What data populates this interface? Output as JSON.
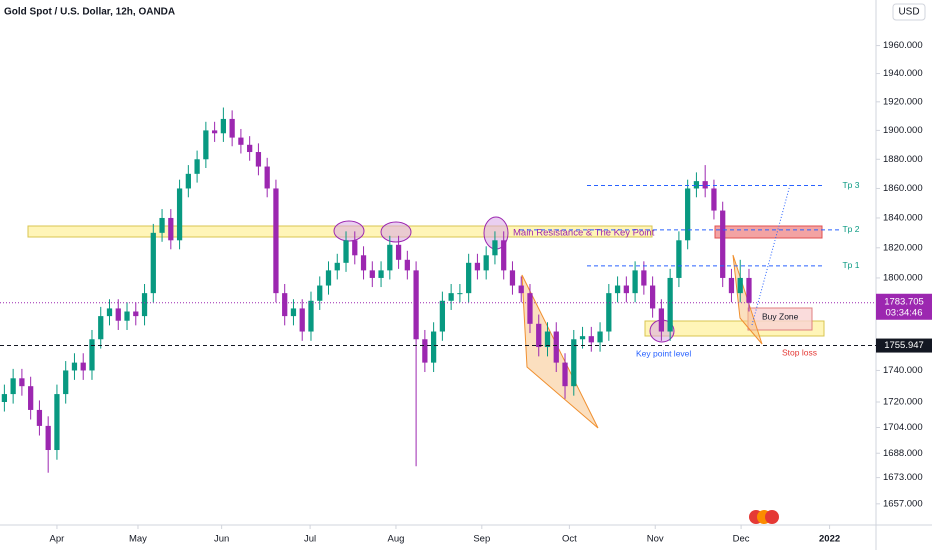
{
  "chart_data": {
    "type": "candlestick",
    "title": "Gold Spot / U.S. Dollar, 12h, OANDA",
    "currency": "USD",
    "log_scale": true,
    "up_color": "#089981",
    "down_color": "#9c27b0",
    "xlim": [
      0,
      100
    ],
    "xticks": [
      {
        "value": 6.5,
        "label": "Apr"
      },
      {
        "value": 15.75,
        "label": "May"
      },
      {
        "value": 25.3,
        "label": "Jun"
      },
      {
        "value": 35.4,
        "label": "Jul"
      },
      {
        "value": 45.2,
        "label": "Aug"
      },
      {
        "value": 55,
        "label": "Sep"
      },
      {
        "value": 65,
        "label": "Oct"
      },
      {
        "value": 74.8,
        "label": "Nov"
      },
      {
        "value": 84.6,
        "label": "Dec"
      },
      {
        "value": 94.7,
        "label": "2022"
      }
    ],
    "ylim": [
      1646,
      1993
    ],
    "yticks": [
      {
        "value": 1960,
        "label": "1960.000"
      },
      {
        "value": 1940,
        "label": "1940.000"
      },
      {
        "value": 1920,
        "label": "1920.000"
      },
      {
        "value": 1900,
        "label": "1900.000"
      },
      {
        "value": 1880,
        "label": "1880.000"
      },
      {
        "value": 1860,
        "label": "1860.000"
      },
      {
        "value": 1840,
        "label": "1840.000"
      },
      {
        "value": 1820,
        "label": "1820.000"
      },
      {
        "value": 1800,
        "label": "1800.000"
      },
      {
        "value": 1740,
        "label": "1740.000"
      },
      {
        "value": 1720,
        "label": "1720.000"
      },
      {
        "value": 1704,
        "label": "1704.000"
      },
      {
        "value": 1688,
        "label": "1688.000"
      },
      {
        "value": 1673,
        "label": "1673.000"
      },
      {
        "value": 1657,
        "label": "1657.000"
      }
    ],
    "open": [
      1720,
      1725,
      1735,
      1730,
      1715,
      1705,
      1690,
      1725,
      1740,
      1745,
      1740,
      1760,
      1775,
      1780,
      1772,
      1778,
      1775,
      1790,
      1830,
      1840,
      1825,
      1860,
      1870,
      1880,
      1900,
      1898,
      1908,
      1895,
      1890,
      1885,
      1875,
      1860,
      1790,
      1775,
      1780,
      1765,
      1785,
      1795,
      1805,
      1810,
      1825,
      1815,
      1805,
      1800,
      1805,
      1822,
      1812,
      1805,
      1760,
      1745,
      1765,
      1785,
      1790,
      1790,
      1810,
      1805,
      1815,
      1825,
      1805,
      1795,
      1790,
      1770,
      1755,
      1765,
      1745,
      1730,
      1760,
      1762,
      1758,
      1765,
      1790,
      1795,
      1790,
      1805,
      1795,
      1780,
      1765,
      1800,
      1825,
      1860,
      1865,
      1860,
      1845,
      1800,
      1790,
      1800
    ],
    "high": [
      1731,
      1741,
      1741,
      1736,
      1721,
      1711,
      1731,
      1746,
      1751,
      1751,
      1766,
      1781,
      1786,
      1786,
      1784,
      1784,
      1796,
      1836,
      1846,
      1846,
      1866,
      1876,
      1886,
      1906,
      1906,
      1916,
      1914,
      1901,
      1896,
      1891,
      1881,
      1866,
      1796,
      1786,
      1786,
      1791,
      1801,
      1811,
      1816,
      1831,
      1831,
      1821,
      1811,
      1811,
      1828,
      1828,
      1818,
      1811,
      1766,
      1771,
      1791,
      1796,
      1796,
      1816,
      1816,
      1821,
      1831,
      1831,
      1811,
      1801,
      1796,
      1776,
      1771,
      1771,
      1751,
      1766,
      1768,
      1768,
      1771,
      1796,
      1801,
      1801,
      1811,
      1811,
      1801,
      1786,
      1806,
      1831,
      1866,
      1871,
      1876,
      1866,
      1851,
      1806,
      1812,
      1806
    ],
    "low": [
      1714,
      1719,
      1724,
      1709,
      1699,
      1676,
      1684,
      1719,
      1734,
      1734,
      1734,
      1754,
      1769,
      1766,
      1766,
      1769,
      1769,
      1784,
      1824,
      1819,
      1819,
      1854,
      1864,
      1874,
      1892,
      1892,
      1889,
      1884,
      1879,
      1869,
      1854,
      1784,
      1769,
      1769,
      1759,
      1759,
      1779,
      1789,
      1799,
      1804,
      1809,
      1799,
      1794,
      1794,
      1799,
      1806,
      1799,
      1680,
      1739,
      1739,
      1759,
      1779,
      1784,
      1784,
      1799,
      1799,
      1809,
      1799,
      1789,
      1784,
      1764,
      1749,
      1749,
      1739,
      1722,
      1724,
      1754,
      1752,
      1752,
      1759,
      1784,
      1784,
      1784,
      1789,
      1774,
      1759,
      1759,
      1794,
      1819,
      1854,
      1854,
      1839,
      1794,
      1784,
      1784,
      1778
    ],
    "close": [
      1725,
      1735,
      1730,
      1715,
      1705,
      1690,
      1725,
      1740,
      1745,
      1740,
      1760,
      1775,
      1780,
      1772,
      1778,
      1775,
      1790,
      1830,
      1840,
      1825,
      1860,
      1870,
      1880,
      1900,
      1898,
      1908,
      1895,
      1890,
      1885,
      1875,
      1860,
      1790,
      1775,
      1780,
      1765,
      1785,
      1795,
      1805,
      1810,
      1825,
      1815,
      1805,
      1800,
      1805,
      1822,
      1812,
      1805,
      1760,
      1745,
      1765,
      1785,
      1790,
      1790,
      1810,
      1805,
      1815,
      1825,
      1805,
      1795,
      1790,
      1770,
      1755,
      1765,
      1745,
      1730,
      1760,
      1762,
      1758,
      1765,
      1790,
      1795,
      1790,
      1805,
      1795,
      1780,
      1765,
      1800,
      1825,
      1860,
      1865,
      1860,
      1845,
      1800,
      1790,
      1800,
      1783.705
    ],
    "last_price": 1783.705,
    "countdown": "03:34:46",
    "key_level": 1755.947,
    "levels": [
      {
        "label": "Tp 3",
        "value": 1862
      },
      {
        "label": "Tp 2",
        "value": 1832
      },
      {
        "label": "Tp 1",
        "value": 1808
      }
    ],
    "annotations": {
      "resistance": "Main Resistance & The Key Point",
      "buy_zone": "Buy Zone",
      "key_point": "Key point level",
      "stop_loss": "Stop loss"
    }
  }
}
